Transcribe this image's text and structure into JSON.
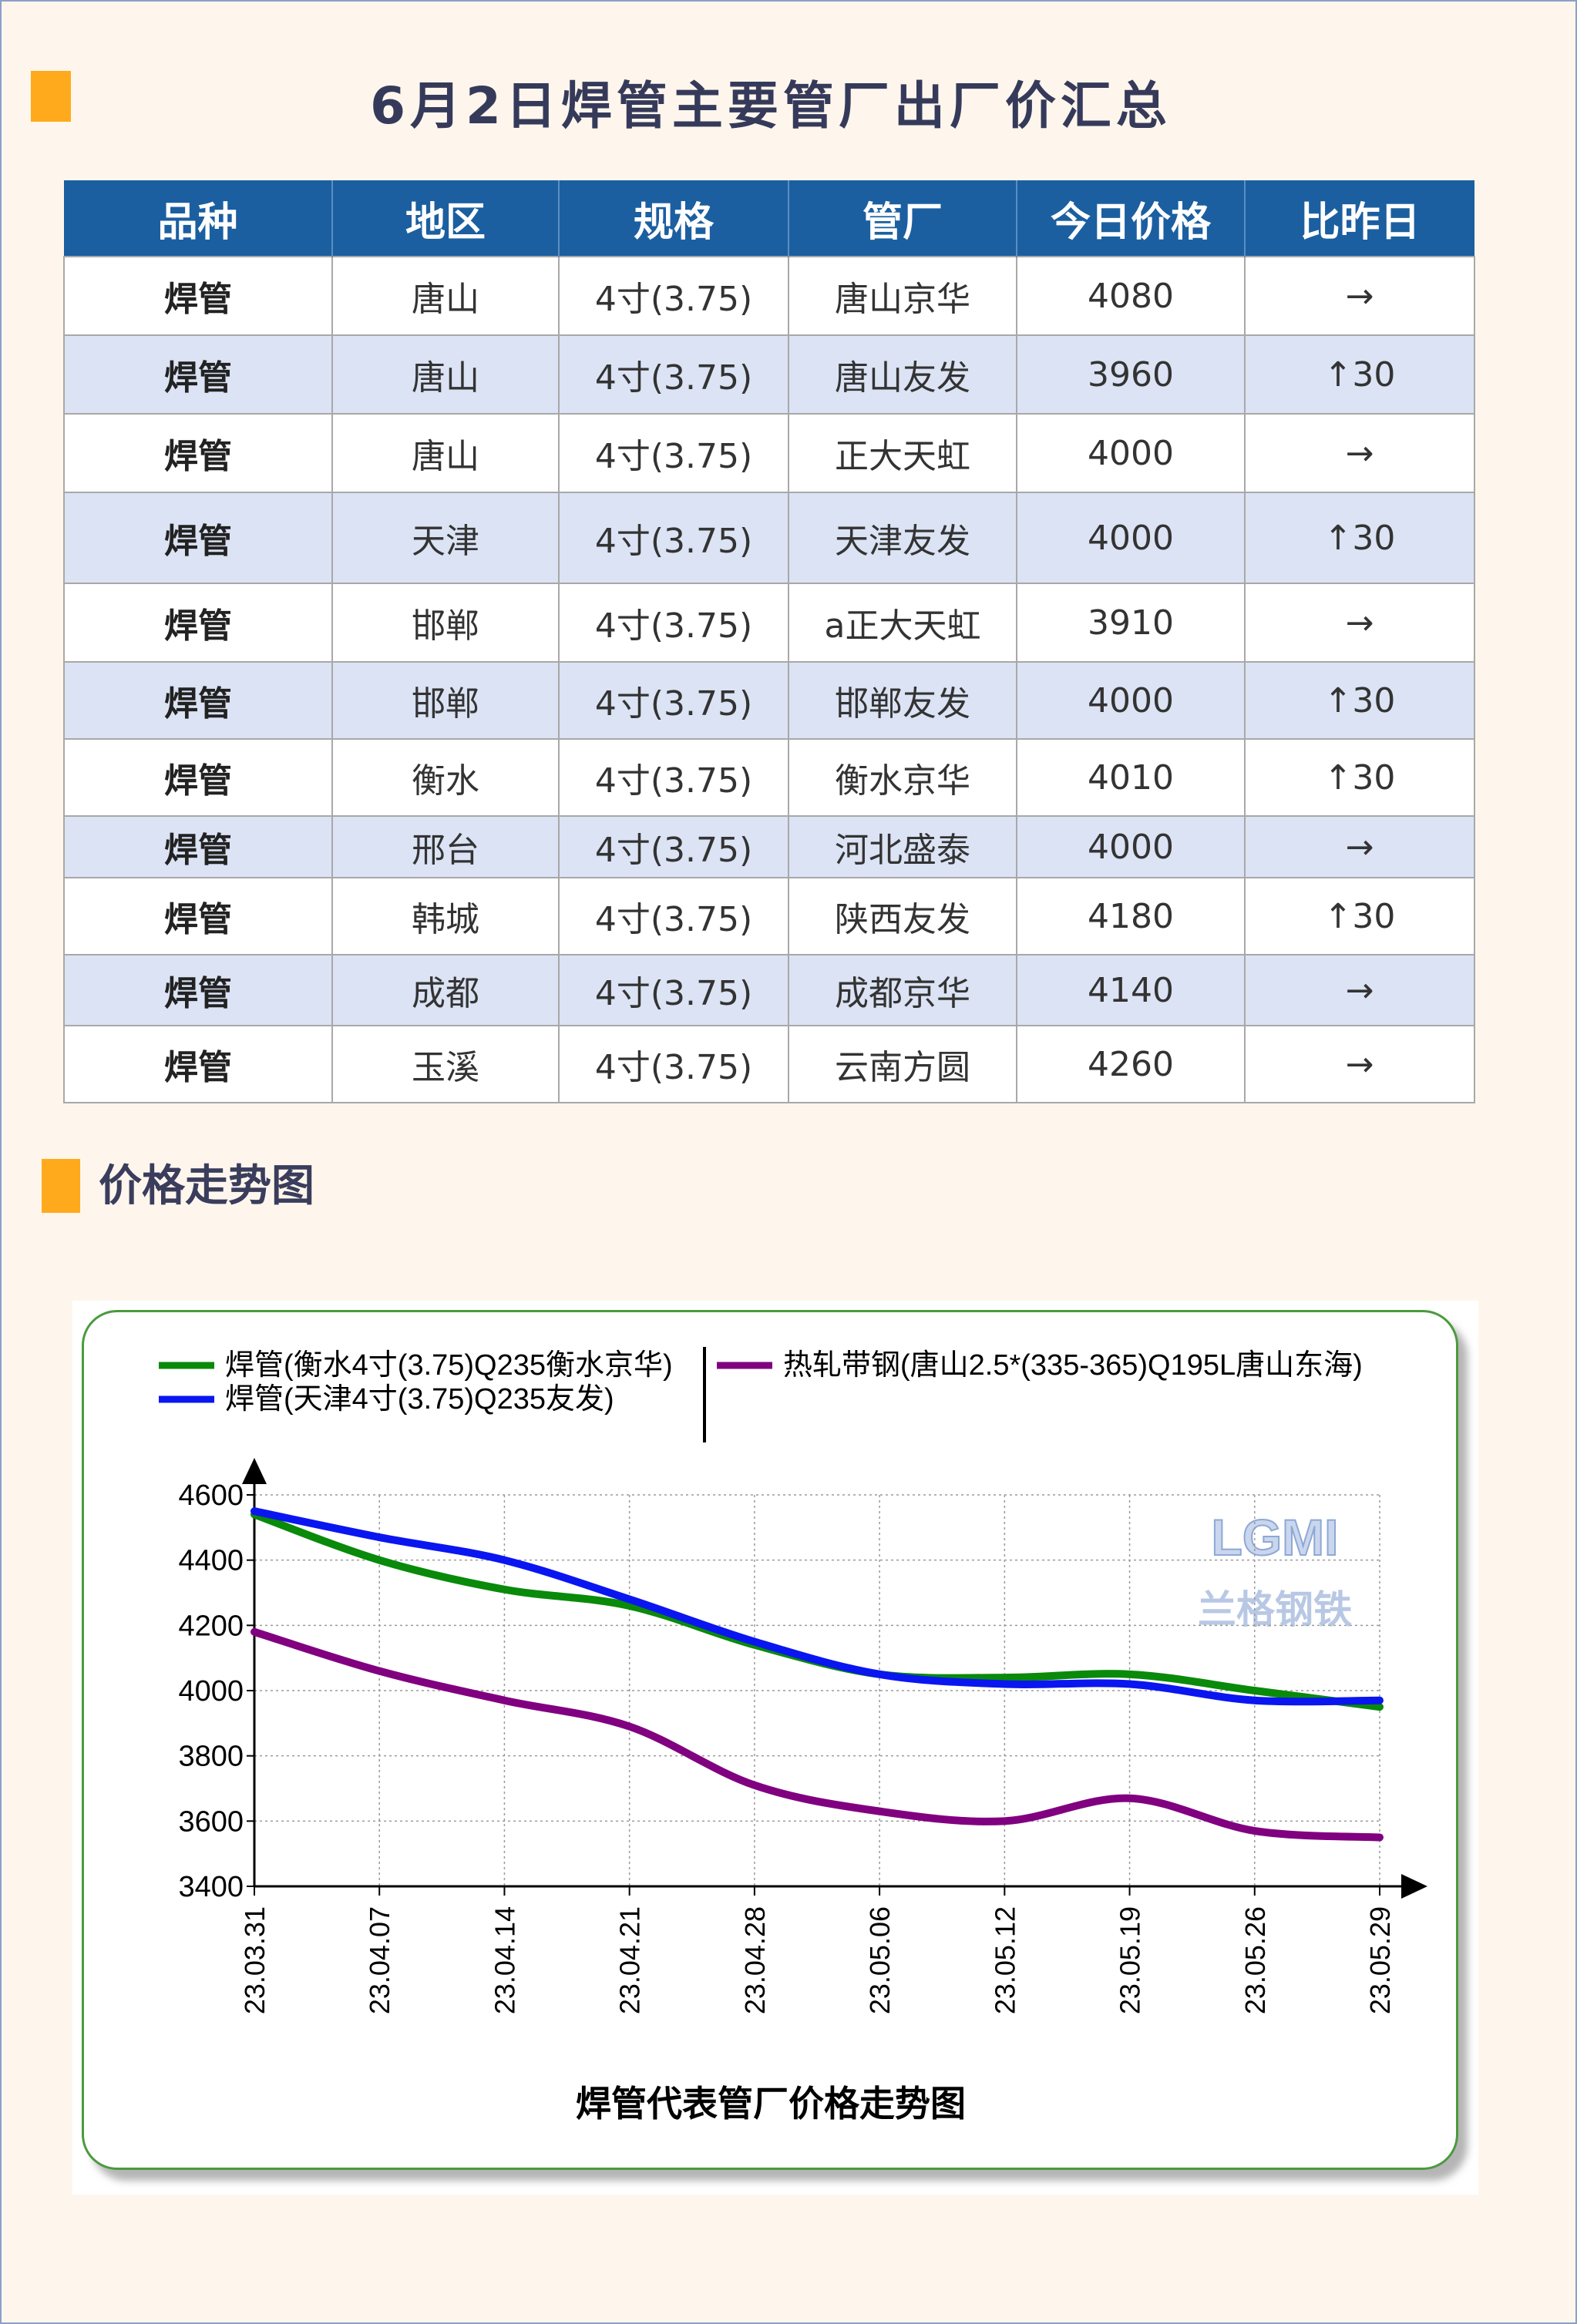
{
  "header": {
    "title": "6月2日焊管主要管厂出厂价汇总"
  },
  "table": {
    "columns": [
      "品种",
      "地区",
      "规格",
      "管厂",
      "今日价格",
      "比昨日"
    ],
    "rows": [
      {
        "variety": "焊管",
        "region": "唐山",
        "spec": "4寸(3.75)",
        "mill": "唐山京华",
        "price": "4080",
        "change": "→",
        "change_dir": "flat"
      },
      {
        "variety": "焊管",
        "region": "唐山",
        "spec": "4寸(3.75)",
        "mill": "唐山友发",
        "price": "3960",
        "change": "↑30",
        "change_dir": "up"
      },
      {
        "variety": "焊管",
        "region": "唐山",
        "spec": "4寸(3.75)",
        "mill": "正大天虹",
        "price": "4000",
        "change": "→",
        "change_dir": "flat"
      },
      {
        "variety": "焊管",
        "region": "天津",
        "spec": "4寸(3.75)",
        "mill": "天津友发",
        "price": "4000",
        "change": "↑30",
        "change_dir": "up"
      },
      {
        "variety": "焊管",
        "region": "邯郸",
        "spec": "4寸(3.75)",
        "mill": "a正大天虹",
        "price": "3910",
        "change": "→",
        "change_dir": "flat"
      },
      {
        "variety": "焊管",
        "region": "邯郸",
        "spec": "4寸(3.75)",
        "mill": "邯郸友发",
        "price": "4000",
        "change": "↑30",
        "change_dir": "up"
      },
      {
        "variety": "焊管",
        "region": "衡水",
        "spec": "4寸(3.75)",
        "mill": "衡水京华",
        "price": "4010",
        "change": "↑30",
        "change_dir": "up"
      },
      {
        "variety": "焊管",
        "region": "邢台",
        "spec": "4寸(3.75)",
        "mill": "河北盛泰",
        "price": "4000",
        "change": "→",
        "change_dir": "flat"
      },
      {
        "variety": "焊管",
        "region": "韩城",
        "spec": "4寸(3.75)",
        "mill": "陕西友发",
        "price": "4180",
        "change": "↑30",
        "change_dir": "up"
      },
      {
        "variety": "焊管",
        "region": "成都",
        "spec": "4寸(3.75)",
        "mill": "成都京华",
        "price": "4140",
        "change": "→",
        "change_dir": "flat"
      },
      {
        "variety": "焊管",
        "region": "玉溪",
        "spec": "4寸(3.75)",
        "mill": "云南方圆",
        "price": "4260",
        "change": "→",
        "change_dir": "flat"
      }
    ]
  },
  "section": {
    "trend_title": "价格走势图"
  },
  "colors": {
    "accent": "#ffaa1c",
    "table_header": "#1b5fa0",
    "row_alt": "#dbe3f4",
    "up": "#e0141e",
    "card_border": "#4a9a3c"
  },
  "chart_data": {
    "type": "line",
    "title": "焊管代表管厂价格走势图",
    "x": [
      "23.03.31",
      "23.04.07",
      "23.04.14",
      "23.04.21",
      "23.04.28",
      "23.05.06",
      "23.05.12",
      "23.05.19",
      "23.05.26",
      "23.05.29"
    ],
    "x_ticks": [
      "23.03.31",
      "23.04.07",
      "23.04.14",
      "23.04.21",
      "23.04.28",
      "23.05.06",
      "23.05.12",
      "23.05.19",
      "23.05.26",
      "23.05.29"
    ],
    "ylim": [
      3400,
      4600
    ],
    "yticks": [
      3400,
      3600,
      3800,
      4000,
      4200,
      4400,
      4600
    ],
    "grid": true,
    "legend_position": "top",
    "watermark": {
      "logo_text": "LGMI",
      "caption": "兰格钢铁"
    },
    "series": [
      {
        "name": "焊管(衡水4寸(3.75)Q235衡水京华)",
        "color": "#0a8a0a",
        "values": [
          4540,
          4400,
          4310,
          4260,
          4140,
          4050,
          4040,
          4050,
          4000,
          3950
        ]
      },
      {
        "name": "焊管(天津4寸(3.75)Q235友发)",
        "color": "#0a16f0",
        "values": [
          4550,
          4470,
          4400,
          4280,
          4150,
          4050,
          4020,
          4020,
          3970,
          3970
        ]
      },
      {
        "name": "热轧带钢(唐山2.5*(335-365)Q195L唐山东海)",
        "color": "#800080",
        "values": [
          4180,
          4060,
          3970,
          3890,
          3710,
          3630,
          3600,
          3670,
          3570,
          3550
        ]
      }
    ]
  }
}
